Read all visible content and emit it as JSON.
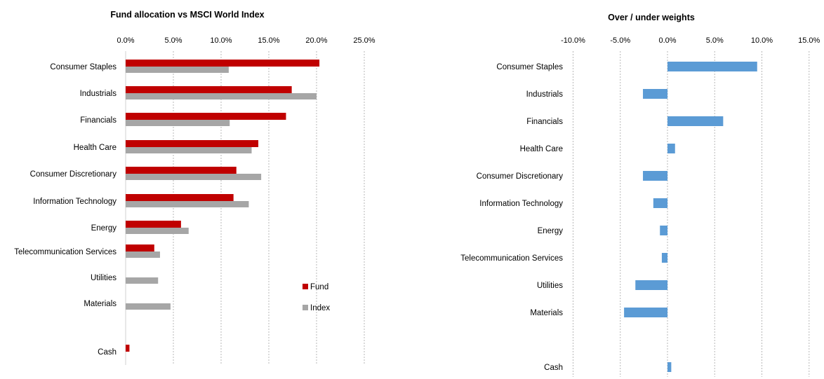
{
  "chart_data": [
    {
      "type": "bar",
      "orientation": "horizontal",
      "title": "Fund allocation vs MSCI World Index",
      "categories": [
        "Consumer Staples",
        "Industrials",
        "Financials",
        "Health Care",
        "Consumer Discretionary",
        "Information Technology",
        "Energy",
        "Telecommunication Services",
        "Utilities",
        "Materials",
        "",
        "Cash"
      ],
      "series": [
        {
          "name": "Fund",
          "color": "#c00000",
          "values": [
            20.3,
            17.4,
            16.8,
            13.9,
            11.6,
            11.3,
            5.8,
            3.0,
            0.0,
            0.0,
            null,
            0.4
          ]
        },
        {
          "name": "Index",
          "color": "#a6a6a6",
          "values": [
            10.8,
            20.0,
            10.9,
            13.2,
            14.2,
            12.9,
            6.6,
            3.6,
            3.4,
            4.7,
            null,
            0.0
          ]
        }
      ],
      "xlim": [
        0,
        25
      ],
      "xticks": [
        "0.0%",
        "5.0%",
        "10.0%",
        "15.0%",
        "20.0%",
        "25.0%"
      ],
      "gridlines": "vertical-dashed",
      "legend": "bottom-right"
    },
    {
      "type": "bar",
      "orientation": "horizontal",
      "title": "Over / under weights",
      "categories": [
        "Consumer Staples",
        "Industrials",
        "Financials",
        "Health Care",
        "Consumer Discretionary",
        "Information Technology",
        "Energy",
        "Telecommunication Services",
        "Utilities",
        "Materials",
        "",
        "Cash"
      ],
      "series": [
        {
          "color": "#5b9bd5",
          "values": [
            9.5,
            -2.6,
            5.9,
            0.8,
            -2.6,
            -1.5,
            -0.8,
            -0.6,
            -3.4,
            -4.6,
            null,
            0.4
          ]
        }
      ],
      "xlim": [
        -10,
        15
      ],
      "xticks": [
        "-10.0%",
        "-5.0%",
        "0.0%",
        "5.0%",
        "10.0%",
        "15.0%"
      ],
      "gridlines": "vertical-dashed"
    }
  ]
}
